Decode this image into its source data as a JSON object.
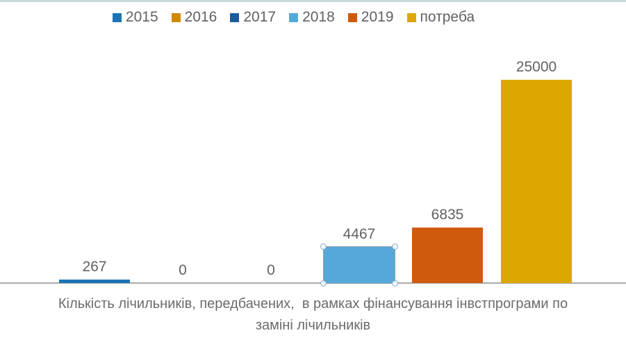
{
  "chart_data": {
    "type": "bar",
    "categories": [
      "2015",
      "2016",
      "2017",
      "2018",
      "2019",
      "потреба"
    ],
    "values": [
      267,
      0,
      0,
      4467,
      6835,
      25000
    ],
    "data_labels": [
      "267",
      "0",
      "0",
      "4467",
      "6835",
      "25000"
    ],
    "colors": [
      "#1B74B4",
      "#D18A00",
      "#1B5C9E",
      "#55A9D9",
      "#CF5A0D",
      "#DCA701"
    ],
    "title": "",
    "xlabel": "Кількість лічильників, передбачених,  в рамках фінансування інвстпрограми по заміні лічильників",
    "xlabel_lines": [
      "Кількість лічильників, передбачених,  в рамках фінансування інвстпрограми по",
      "заміні лічильників"
    ],
    "ylabel": "",
    "ylim": [
      0,
      25000
    ],
    "grid": false,
    "legend_position": "top",
    "selected_category": "2018"
  },
  "ui": {
    "background": "#FFFFFF",
    "top_border_color": "#C9DADD",
    "axis_line_color": "#A8A8A8",
    "label_text_color": "#616161",
    "axis_title_color": "#6B6B6B",
    "selection_handle_fill": "#F5FAFD",
    "selection_handle_border": "#85A9C5",
    "selected_bar_outline": "#8F9AA3"
  }
}
